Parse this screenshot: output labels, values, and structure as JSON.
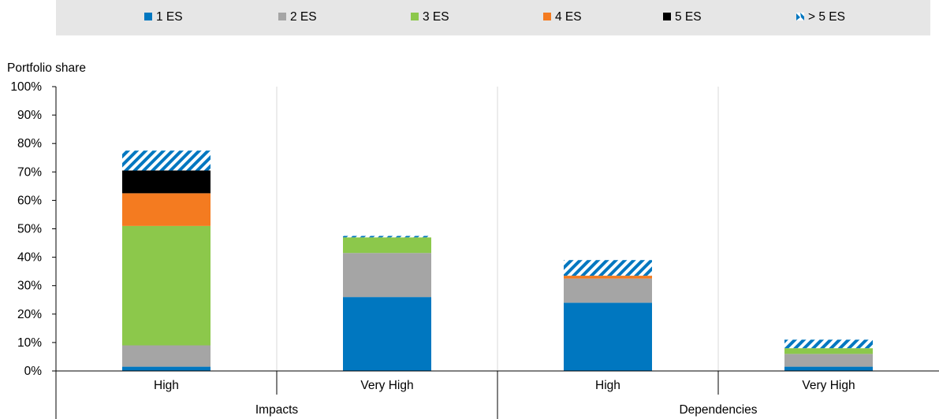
{
  "chart_data": {
    "type": "bar",
    "stacked": true,
    "ylabel": "Portfolio share",
    "ylim": [
      0,
      100
    ],
    "yticks": [
      "0%",
      "10%",
      "20%",
      "30%",
      "40%",
      "50%",
      "60%",
      "70%",
      "80%",
      "90%",
      "100%"
    ],
    "grid": "vertical separators",
    "legend_position": "top",
    "categories": [
      "High",
      "Very High",
      "High",
      "Very High"
    ],
    "groups": [
      {
        "label": "Impacts",
        "categories": [
          "High",
          "Very High"
        ]
      },
      {
        "label": "Dependencies",
        "categories": [
          "High",
          "Very High"
        ]
      }
    ],
    "series": [
      {
        "name": "1 ES",
        "color": "#0077c0",
        "pattern": "solid",
        "values": [
          1.5,
          26,
          24,
          1.5
        ]
      },
      {
        "name": "2 ES",
        "color": "#a5a5a5",
        "pattern": "solid",
        "values": [
          7.5,
          15.5,
          8.5,
          4.5
        ]
      },
      {
        "name": "3 ES",
        "color": "#8cc84b",
        "pattern": "solid",
        "values": [
          42,
          5.5,
          0,
          2
        ]
      },
      {
        "name": "4 ES",
        "color": "#f47b20",
        "pattern": "solid",
        "values": [
          11.5,
          0,
          1,
          0
        ]
      },
      {
        "name": "5 ES",
        "color": "#000000",
        "pattern": "solid",
        "values": [
          8,
          0,
          0,
          0
        ]
      },
      {
        "name": "> 5 ES",
        "color": "#0077c0",
        "pattern": "hatch",
        "values": [
          7,
          0.5,
          5.5,
          3
        ]
      }
    ]
  }
}
